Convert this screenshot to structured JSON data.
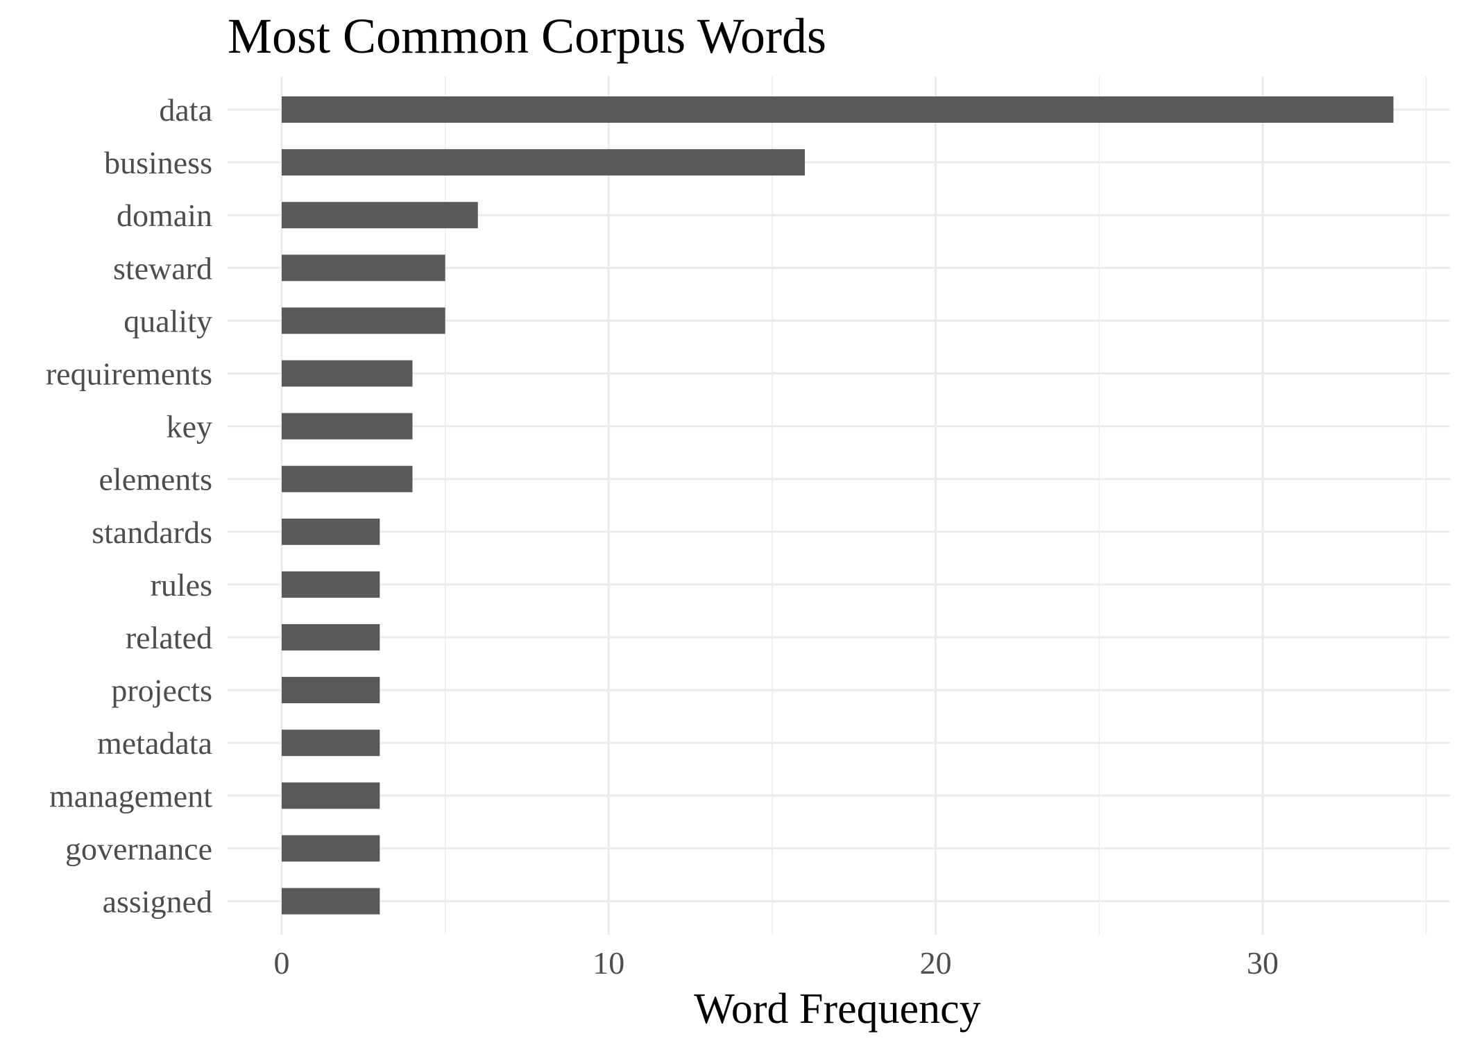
{
  "chart_data": {
    "type": "bar",
    "orientation": "horizontal",
    "title": "Most Common Corpus Words",
    "xlabel": "Word Frequency",
    "ylabel": "",
    "categories": [
      "data",
      "business",
      "domain",
      "steward",
      "quality",
      "requirements",
      "key",
      "elements",
      "standards",
      "rules",
      "related",
      "projects",
      "metadata",
      "management",
      "governance",
      "assigned"
    ],
    "values": [
      34,
      16,
      6,
      5,
      5,
      4,
      4,
      4,
      3,
      3,
      3,
      3,
      3,
      3,
      3,
      3
    ],
    "xlim": [
      0,
      35
    ],
    "xticks": [
      0,
      10,
      20,
      30
    ],
    "grid": true,
    "legend": "none",
    "bar_color": "#595959",
    "grid_color": "#ebebeb"
  }
}
